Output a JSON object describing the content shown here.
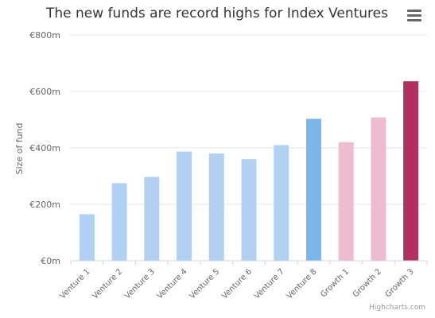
{
  "chart_data": {
    "type": "bar",
    "title": "The new funds are record highs for Index Ventures",
    "ylabel": "Size of fund",
    "xlabel": "",
    "categories": [
      "Venture 1",
      "Venture 2",
      "Venture 3",
      "Venture 4",
      "Venture 5",
      "Venture 6",
      "Venture 7",
      "Venture 8",
      "Growth 1",
      "Growth 2",
      "Growth 3"
    ],
    "values": [
      165,
      275,
      297,
      387,
      380,
      360,
      410,
      503,
      420,
      508,
      636
    ],
    "colors": [
      "#b0d1f1",
      "#b0d1f1",
      "#b0d1f1",
      "#b0d1f1",
      "#b0d1f1",
      "#b0d1f1",
      "#b0d1f1",
      "#7cb5ec",
      "#edbcd1",
      "#edbcd1",
      "#b0305e"
    ],
    "ylim": [
      0,
      800
    ],
    "yticks": [
      0,
      200,
      400,
      600,
      800
    ],
    "ytick_labels": [
      "€0m",
      "€200m",
      "€400m",
      "€600m",
      "€800m"
    ],
    "grid": true,
    "legend": "none"
  },
  "credits": "Highcharts.com",
  "menu_icon": "hamburger-menu-icon"
}
